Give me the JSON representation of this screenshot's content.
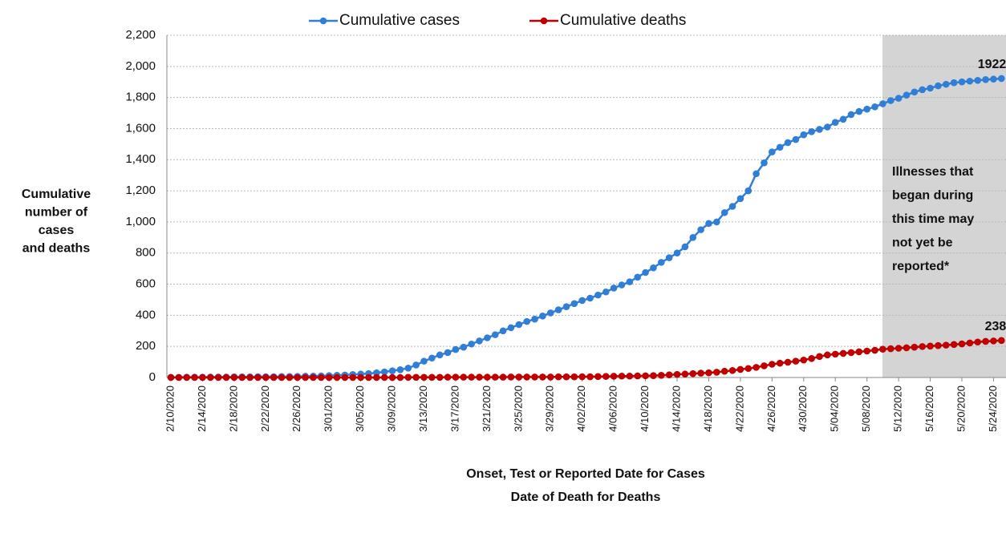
{
  "chart_data": {
    "type": "line",
    "y_label_lines": [
      "Cumulative",
      "number of",
      "cases",
      "and deaths"
    ],
    "x_label_lines": [
      "Onset, Test or Reported Date for Cases",
      "Date of Death for Deaths"
    ],
    "annotation_lines": [
      "Illnesses that",
      "began during",
      "this time may",
      "not yet be",
      "reported*"
    ],
    "categories": [
      "2/10/2020",
      null,
      null,
      null,
      "2/14/2020",
      null,
      null,
      null,
      "2/18/2020",
      null,
      null,
      null,
      "2/22/2020",
      null,
      null,
      null,
      "2/26/2020",
      null,
      null,
      null,
      "3/01/2020",
      null,
      null,
      null,
      "3/05/2020",
      null,
      null,
      null,
      "3/09/2020",
      null,
      null,
      null,
      "3/13/2020",
      null,
      null,
      null,
      "3/17/2020",
      null,
      null,
      null,
      "3/21/2020",
      null,
      null,
      null,
      "3/25/2020",
      null,
      null,
      null,
      "3/29/2020",
      null,
      null,
      null,
      "4/02/2020",
      null,
      null,
      null,
      "4/06/2020",
      null,
      null,
      null,
      "4/10/2020",
      null,
      null,
      null,
      "4/14/2020",
      null,
      null,
      null,
      "4/18/2020",
      null,
      null,
      null,
      "4/22/2020",
      null,
      null,
      null,
      "4/26/2020",
      null,
      null,
      null,
      "4/30/2020",
      null,
      null,
      null,
      "5/04/2020",
      null,
      null,
      null,
      "5/08/2020",
      null,
      null,
      null,
      "5/12/2020",
      null,
      null,
      null,
      "5/16/2020",
      null,
      null,
      null,
      "5/20/2020",
      null,
      null,
      null,
      "5/24/2020",
      null
    ],
    "series": [
      {
        "name": "Cumulative cases",
        "color": "#2f7ed8",
        "values": [
          1,
          1,
          2,
          2,
          2,
          3,
          3,
          3,
          4,
          4,
          4,
          5,
          5,
          5,
          6,
          6,
          7,
          8,
          9,
          10,
          12,
          14,
          16,
          19,
          22,
          25,
          30,
          36,
          43,
          50,
          60,
          80,
          105,
          125,
          145,
          160,
          180,
          195,
          215,
          235,
          255,
          275,
          300,
          320,
          340,
          360,
          375,
          395,
          415,
          435,
          455,
          475,
          495,
          510,
          530,
          550,
          575,
          595,
          615,
          645,
          675,
          705,
          740,
          770,
          800,
          840,
          900,
          950,
          990,
          1000,
          1060,
          1100,
          1150,
          1200,
          1310,
          1380,
          1450,
          1480,
          1510,
          1530,
          1560,
          1580,
          1595,
          1610,
          1640,
          1660,
          1690,
          1710,
          1725,
          1740,
          1760,
          1780,
          1795,
          1815,
          1835,
          1850,
          1860,
          1875,
          1885,
          1895,
          1900,
          1905,
          1910,
          1915,
          1918,
          1922
        ],
        "value_labels": [
          null,
          null,
          null,
          null,
          null,
          null,
          null,
          null,
          null,
          null,
          null,
          null,
          null,
          null,
          null,
          null,
          null,
          null,
          null,
          null,
          null,
          null,
          null,
          null,
          null,
          null,
          null,
          null,
          null,
          null,
          null,
          null,
          null,
          null,
          null,
          null,
          null,
          null,
          null,
          null,
          null,
          null,
          null,
          null,
          null,
          null,
          null,
          null,
          null,
          null,
          null,
          null,
          null,
          null,
          null,
          null,
          null,
          null,
          null,
          null,
          null,
          null,
          null,
          null,
          null,
          null,
          null,
          null,
          null,
          null,
          null,
          null,
          null,
          null,
          null,
          null,
          null,
          null,
          null,
          null,
          null,
          null,
          null,
          null,
          null,
          null,
          null,
          null,
          null,
          null,
          null,
          null,
          null,
          null,
          null,
          null,
          null,
          null,
          null,
          null,
          null,
          null,
          null,
          null,
          null,
          "1922"
        ]
      },
      {
        "name": "Cumulative deaths",
        "color": "#c00000",
        "values": [
          0,
          0,
          0,
          0,
          0,
          0,
          0,
          0,
          0,
          0,
          0,
          0,
          0,
          0,
          0,
          0,
          0,
          0,
          0,
          0,
          0,
          0,
          0,
          0,
          0,
          0,
          0,
          0,
          0,
          0,
          1,
          1,
          1,
          1,
          1,
          2,
          2,
          2,
          2,
          2,
          2,
          2,
          2,
          3,
          3,
          3,
          3,
          3,
          3,
          4,
          4,
          4,
          5,
          5,
          6,
          7,
          8,
          9,
          9,
          10,
          11,
          12,
          14,
          17,
          20,
          22,
          25,
          28,
          30,
          34,
          40,
          45,
          52,
          58,
          65,
          75,
          85,
          92,
          98,
          105,
          112,
          122,
          135,
          145,
          150,
          155,
          160,
          165,
          170,
          175,
          182,
          185,
          188,
          191,
          195,
          199,
          202,
          205,
          208,
          212,
          216,
          222,
          228,
          232,
          235,
          238
        ],
        "value_labels": [
          null,
          null,
          null,
          null,
          null,
          null,
          null,
          null,
          null,
          null,
          null,
          null,
          null,
          null,
          null,
          null,
          null,
          null,
          null,
          null,
          null,
          null,
          null,
          null,
          null,
          null,
          null,
          null,
          null,
          null,
          null,
          null,
          null,
          null,
          null,
          null,
          null,
          null,
          null,
          null,
          null,
          null,
          null,
          null,
          null,
          null,
          null,
          null,
          null,
          null,
          null,
          null,
          null,
          null,
          null,
          null,
          null,
          null,
          null,
          null,
          null,
          null,
          null,
          null,
          null,
          null,
          null,
          null,
          null,
          null,
          null,
          null,
          null,
          null,
          null,
          null,
          null,
          null,
          null,
          null,
          null,
          null,
          null,
          null,
          null,
          null,
          null,
          null,
          null,
          null,
          null,
          null,
          null,
          null,
          null,
          null,
          null,
          null,
          null,
          null,
          null,
          null,
          null,
          null,
          null,
          "238"
        ]
      }
    ],
    "ylim": [
      0,
      2200
    ],
    "yticks": [
      0,
      200,
      400,
      600,
      800,
      {
        "value": 1000,
        "label": "1,000"
      },
      {
        "value": 1200,
        "label": "1,200"
      },
      {
        "value": 1400,
        "label": "1,400"
      },
      {
        "value": 1600,
        "label": "1,600"
      },
      {
        "value": 1800,
        "label": "1,800"
      },
      {
        "value": 2000,
        "label": "2,000"
      },
      {
        "value": 2200,
        "label": "2,200"
      }
    ],
    "grid": true
  }
}
